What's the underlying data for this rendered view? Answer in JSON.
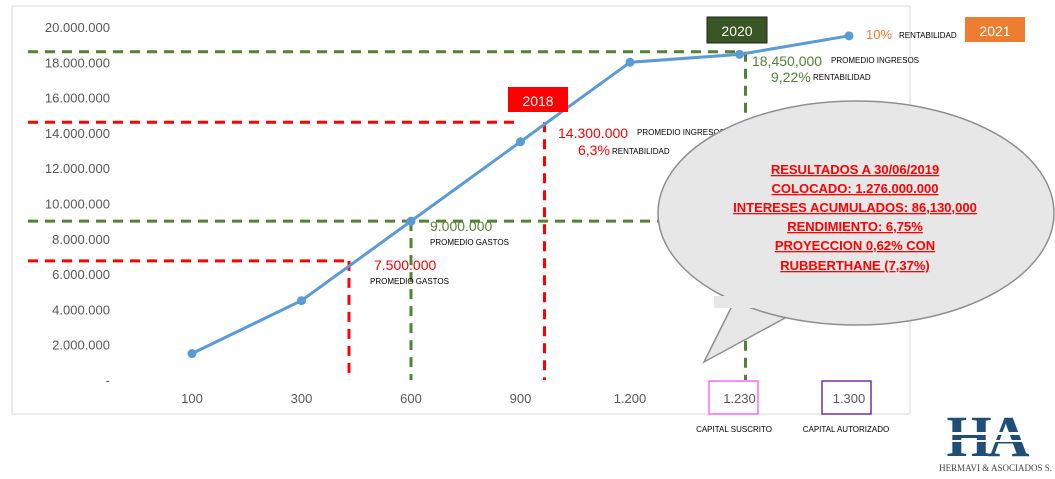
{
  "chart_data": {
    "type": "line",
    "categories": [
      "100",
      "300",
      "600",
      "900",
      "1.200",
      "1.230",
      "1.300"
    ],
    "values": [
      1500000,
      4500000,
      9000000,
      13500000,
      18000000,
      18450000,
      19500000
    ],
    "ylim": [
      0,
      20000000
    ],
    "yticks": [
      "-",
      "2.000.000",
      "4.000.000",
      "6.000.000",
      "8.000.000",
      "10.000.000",
      "12.000.000",
      "14.000.000",
      "16.000.000",
      "18.000.000",
      "20.000.000"
    ],
    "grid": false,
    "colors": {
      "line": "#5b9bd5",
      "red_ref": "#ff0000",
      "green_ref": "#548235",
      "orange": "#ed7d31"
    },
    "reference_lines": [
      {
        "color": "red",
        "y": 6750000,
        "x_from": "100",
        "x_to": "600"
      },
      {
        "color": "green",
        "y": 9000000,
        "x_from": "100",
        "x_to": "1.230"
      },
      {
        "color": "red",
        "y": 14600000,
        "x_from": "100",
        "x_to": "900"
      },
      {
        "color": "green",
        "y": 18600000,
        "x_from": "100",
        "x_to": "1.230"
      }
    ],
    "annotations": [
      {
        "id": "a1",
        "value": "7.500.000",
        "label": "PROMEDIO GASTOS"
      },
      {
        "id": "a2",
        "value": "9.000.000",
        "label": "PROMEDIO GASTOS"
      },
      {
        "id": "a3",
        "value": "14.300.000",
        "label": "PROMEDIO INGRESOS",
        "pct": "6,3%",
        "pct_label": "RENTABILIDAD"
      },
      {
        "id": "a4",
        "value": "18,450,000",
        "label": "PROMEDIO INGRESOS",
        "pct": "9,22%",
        "pct_label": "RENTABILIDAD"
      },
      {
        "id": "a5",
        "pct": "10%",
        "pct_label": "RENTABILIDAD"
      }
    ],
    "badges": {
      "y2018": "2018",
      "y2020": "2020",
      "y2021": "2021"
    },
    "boxed_ticks": {
      "suscrito": "1.230",
      "autorizado": "1.300"
    },
    "tick_captions": {
      "suscrito": "CAPITAL SUSCRITO",
      "autorizado": "CAPITAL AUTORIZADO"
    }
  },
  "callout": {
    "lines": [
      "RESULTADOS A 30/06/2019",
      "COLOCADO: 1.276.000.000",
      "INTERESES ACUMULADOS: 86,130,000",
      "RENDIMIENTO: 6,75%",
      "PROYECCION 0,62% CON",
      "RUBBERTHANE (7,37%)"
    ]
  },
  "logo": {
    "mark": "HA",
    "text": "HERMAVI & ASOCIADOS S."
  }
}
